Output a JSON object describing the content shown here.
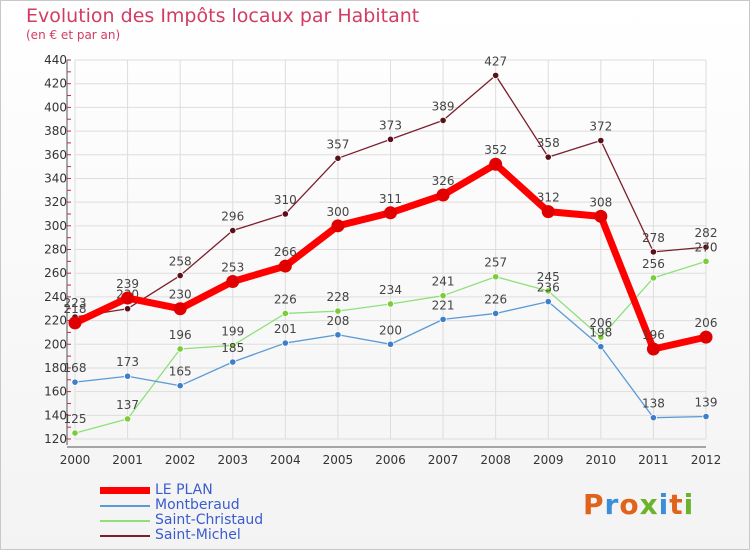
{
  "header": {
    "title": "Evolution des Impôts locaux par Habitant",
    "subtitle": "(en € et par an)"
  },
  "logo": {
    "text": "Proxiti",
    "letters": [
      "P",
      "r",
      "o",
      "x",
      "i",
      "t",
      "i"
    ],
    "colors": [
      "#e0621b",
      "#3b8fd9",
      "#e0621b",
      "#6ab32a",
      "#3b8fd9",
      "#e0621b",
      "#6ab32a"
    ]
  },
  "chart_data": {
    "type": "line",
    "title": "Evolution des Impôts locaux par Habitant",
    "subtitle": "(en € et par an)",
    "x": [
      "2000",
      "2001",
      "2002",
      "2003",
      "2004",
      "2005",
      "2006",
      "2007",
      "2008",
      "2009",
      "2010",
      "2011",
      "2012"
    ],
    "ylim": [
      120,
      440
    ],
    "yticks": [
      120,
      140,
      160,
      180,
      200,
      220,
      240,
      260,
      280,
      300,
      320,
      340,
      360,
      380,
      400,
      420,
      440
    ],
    "grid": true,
    "legend_position": "bottom-left",
    "series": [
      {
        "name": "Saint-Michel",
        "color": "#7a1f2b",
        "marker": "#5a1018",
        "values": [
          223,
          230,
          258,
          296,
          310,
          357,
          373,
          389,
          427,
          358,
          372,
          278,
          282
        ]
      },
      {
        "name": "Saint-Christaud",
        "color": "#8fe07a",
        "marker": "#7ccc3a",
        "values": [
          125,
          137,
          196,
          199,
          226,
          228,
          234,
          241,
          257,
          245,
          206,
          256,
          270
        ]
      },
      {
        "name": "Montberaud",
        "color": "#5b9bd5",
        "marker": "#3f7fc8",
        "values": [
          168,
          173,
          165,
          185,
          201,
          208,
          200,
          221,
          226,
          236,
          198,
          138,
          139
        ]
      },
      {
        "name": "LE PLAN",
        "color": "#ff0000",
        "marker": "#e00000",
        "values": [
          218,
          239,
          230,
          253,
          266,
          300,
          311,
          326,
          352,
          312,
          308,
          196,
          206
        ]
      }
    ],
    "legend_order": [
      "LE PLAN",
      "Montberaud",
      "Saint-Christaud",
      "Saint-Michel"
    ]
  }
}
